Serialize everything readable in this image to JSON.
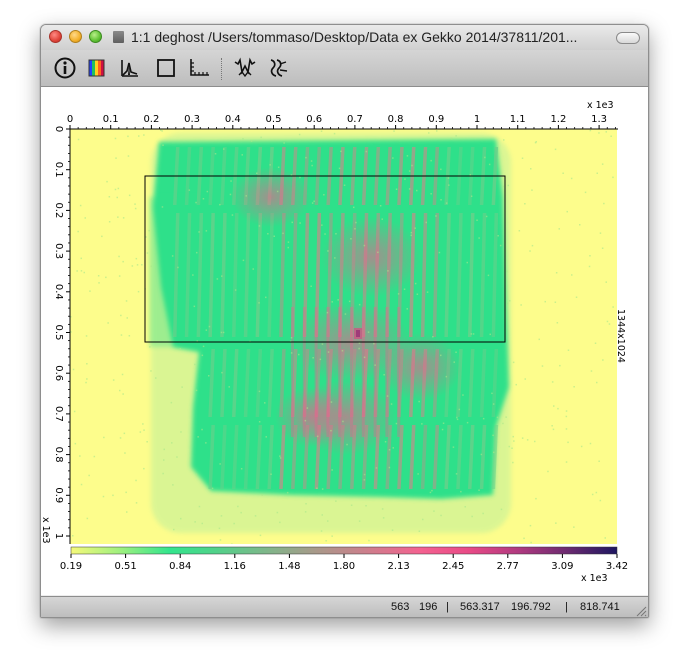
{
  "window": {
    "title": "1:1 deghost /Users/tommaso/Desktop/Data ex Gekko 2014/37811/201..."
  },
  "toolbar": {
    "buttons": [
      "info-icon",
      "colormap-icon",
      "lineout-icon",
      "rectangle-icon",
      "ruler-icon",
      "fourier-icon",
      "ghost-icon"
    ]
  },
  "plot": {
    "x_multiplier": "x 1e3",
    "y_multiplier": "x 1e3",
    "x_ticks": [
      "0",
      "0.1",
      "0.2",
      "0.3",
      "0.4",
      "0.5",
      "0.6",
      "0.7",
      "0.8",
      "0.9",
      "1",
      "1.1",
      "1.2",
      "1.3"
    ],
    "y_ticks": [
      "0",
      "0.1",
      "0.2",
      "0.3",
      "0.4",
      "0.5",
      "0.6",
      "0.7",
      "0.8",
      "0.9",
      "1"
    ],
    "size_label": "1344x1024",
    "colorbar_ticks": [
      "0.19",
      "0.51",
      "0.84",
      "1.16",
      "1.48",
      "1.80",
      "2.13",
      "2.45",
      "2.77",
      "3.09",
      "3.42"
    ],
    "colorbar_multiplier": "x 1e3",
    "colors": {
      "background": "#fdfd8c",
      "green": "#2fe08a",
      "mid": "#b79489",
      "pink": "#f05b8e",
      "top": "#2d1a66"
    }
  },
  "status": {
    "pixel_x": "563",
    "pixel_y": "196",
    "sep1": "|",
    "coord_x": "563.317",
    "coord_y": "196.792",
    "sep2": "|",
    "value": "818.741"
  }
}
